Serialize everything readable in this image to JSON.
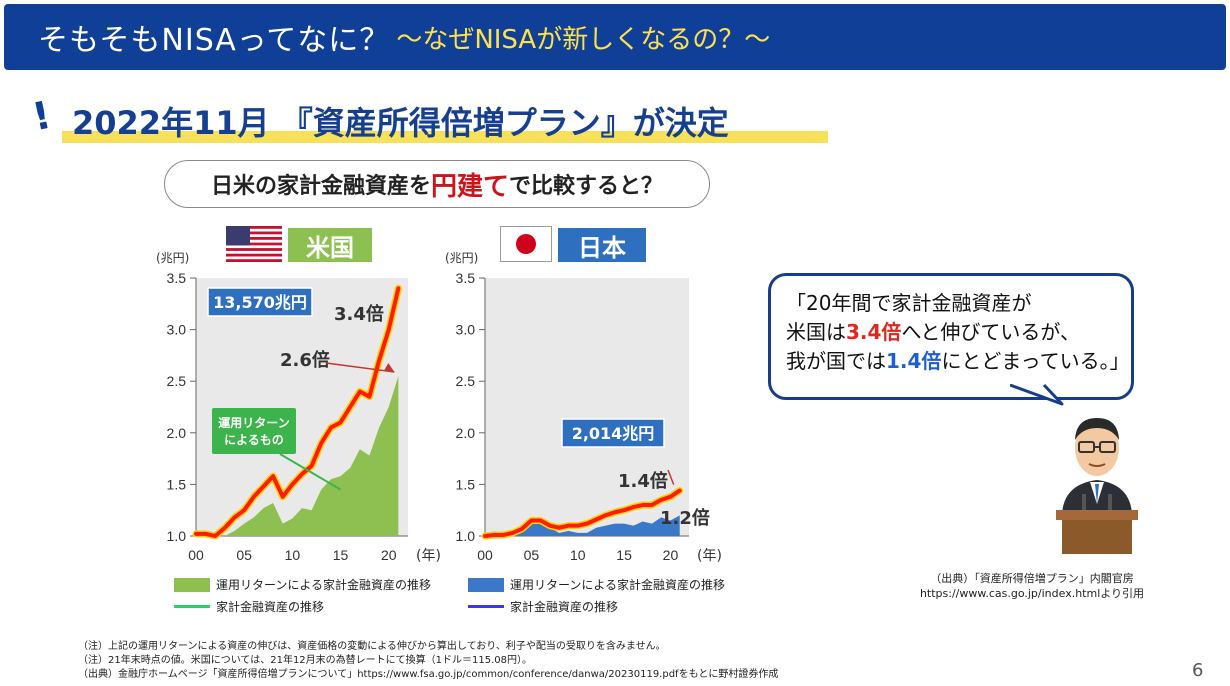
{
  "header": {
    "title": "そもそもNISAってなに？",
    "subtitle": "～なぜNISAが新しくなるの？～"
  },
  "headline": "2022年11月 『資産所得倍増プラン』が決定",
  "question": {
    "before": "日米の家計金融資産を",
    "emph": "円建て",
    "after": "で比較すると？"
  },
  "us_label": "米国",
  "jp_label": "日本",
  "legend_us": {
    "area": "運用リターンによる家計金融資産の推移",
    "line": "家計金融資産の推移"
  },
  "legend_jp": {
    "area": "運用リターンによる家計金融資産の推移",
    "line": "家計金融資産の推移"
  },
  "bubble": {
    "l1": "「20年間で家計金融資産が",
    "l2a": "米国は",
    "l2b": "3.4倍",
    "l2c": "へと伸びているが、",
    "l3a": "我が国では",
    "l3b": "1.4倍",
    "l3c": "にとどまっている。」"
  },
  "source_right": {
    "l1": "（出典）「資産所得倍増プラン」内閣官房",
    "l2": "https://www.cas.go.jp/index.htmlより引用"
  },
  "notes": [
    "（注）上記の運用リターンによる資産の伸びは、資産価格の変動による伸びから算出しており、利子や配当の受取りを含みません。",
    "（注）21年末時点の値。米国については、21年12月末の為替レートにて換算（1ドル＝115.08円）。",
    "（出典）金融庁ホームページ「資産所得倍増プランについて」https://www.fsa.go.jp/common/conference/danwa/20230119.pdfをもとに野村證券作成"
  ],
  "page_number": "6",
  "colors": {
    "header_bg": "#0f3f96",
    "us_area": "#8dc050",
    "us_line": "#ff1a00",
    "jp_area": "#3c78c8",
    "jp_line": "#ff1a00",
    "highlight": "#f7e15a"
  },
  "chart_data": [
    {
      "type": "area",
      "title": "米国",
      "ylabel": "(兆円)",
      "xlabel": "(年)",
      "ylim": [
        1.0,
        3.5
      ],
      "yticks": [
        "1.0",
        "1.5",
        "2.0",
        "2.5",
        "3.0",
        "3.5"
      ],
      "xlim": [
        0,
        22
      ],
      "xticks": [
        "00",
        "05",
        "10",
        "15",
        "20"
      ],
      "x": [
        0,
        1,
        2,
        3,
        4,
        5,
        6,
        7,
        8,
        9,
        10,
        11,
        12,
        13,
        14,
        15,
        16,
        17,
        18,
        19,
        20,
        21
      ],
      "series": [
        {
          "name": "運用リターンによる家計金融資産の推移",
          "values": [
            1.0,
            1.0,
            1.0,
            1.0,
            1.05,
            1.12,
            1.18,
            1.27,
            1.32,
            1.12,
            1.17,
            1.27,
            1.25,
            1.45,
            1.55,
            1.58,
            1.66,
            1.84,
            1.78,
            2.05,
            2.25,
            2.55
          ]
        },
        {
          "name": "家計金融資産の推移",
          "values": [
            1.02,
            1.02,
            1.0,
            1.08,
            1.18,
            1.25,
            1.38,
            1.48,
            1.58,
            1.38,
            1.5,
            1.6,
            1.68,
            1.9,
            2.05,
            2.1,
            2.25,
            2.4,
            2.35,
            2.7,
            3.0,
            3.4
          ]
        }
      ],
      "annotations": [
        {
          "text": "13,570兆円"
        },
        {
          "text": "3.4倍"
        },
        {
          "text": "2.6倍"
        },
        {
          "text": "運用リターン\nによるもの"
        }
      ]
    },
    {
      "type": "area",
      "title": "日本",
      "ylabel": "(兆円)",
      "xlabel": "(年)",
      "ylim": [
        1.0,
        3.5
      ],
      "yticks": [
        "1.0",
        "1.5",
        "2.0",
        "2.5",
        "3.0",
        "3.5"
      ],
      "xlim": [
        0,
        22
      ],
      "xticks": [
        "00",
        "05",
        "10",
        "15",
        "20"
      ],
      "x": [
        0,
        1,
        2,
        3,
        4,
        5,
        6,
        7,
        8,
        9,
        10,
        11,
        12,
        13,
        14,
        15,
        16,
        17,
        18,
        19,
        20,
        21
      ],
      "series": [
        {
          "name": "運用リターンによる家計金融資産の推移",
          "values": [
            1.0,
            1.0,
            1.0,
            1.02,
            1.05,
            1.13,
            1.15,
            1.08,
            1.03,
            1.05,
            1.03,
            1.03,
            1.08,
            1.1,
            1.12,
            1.12,
            1.1,
            1.14,
            1.12,
            1.18,
            1.15,
            1.2
          ]
        },
        {
          "name": "家計金融資産の推移",
          "values": [
            1.0,
            1.01,
            1.01,
            1.03,
            1.07,
            1.15,
            1.15,
            1.1,
            1.08,
            1.1,
            1.1,
            1.12,
            1.16,
            1.2,
            1.23,
            1.25,
            1.28,
            1.3,
            1.3,
            1.35,
            1.38,
            1.44
          ]
        }
      ],
      "annotations": [
        {
          "text": "2,014兆円"
        },
        {
          "text": "1.4倍"
        },
        {
          "text": "1.2倍"
        }
      ]
    }
  ]
}
